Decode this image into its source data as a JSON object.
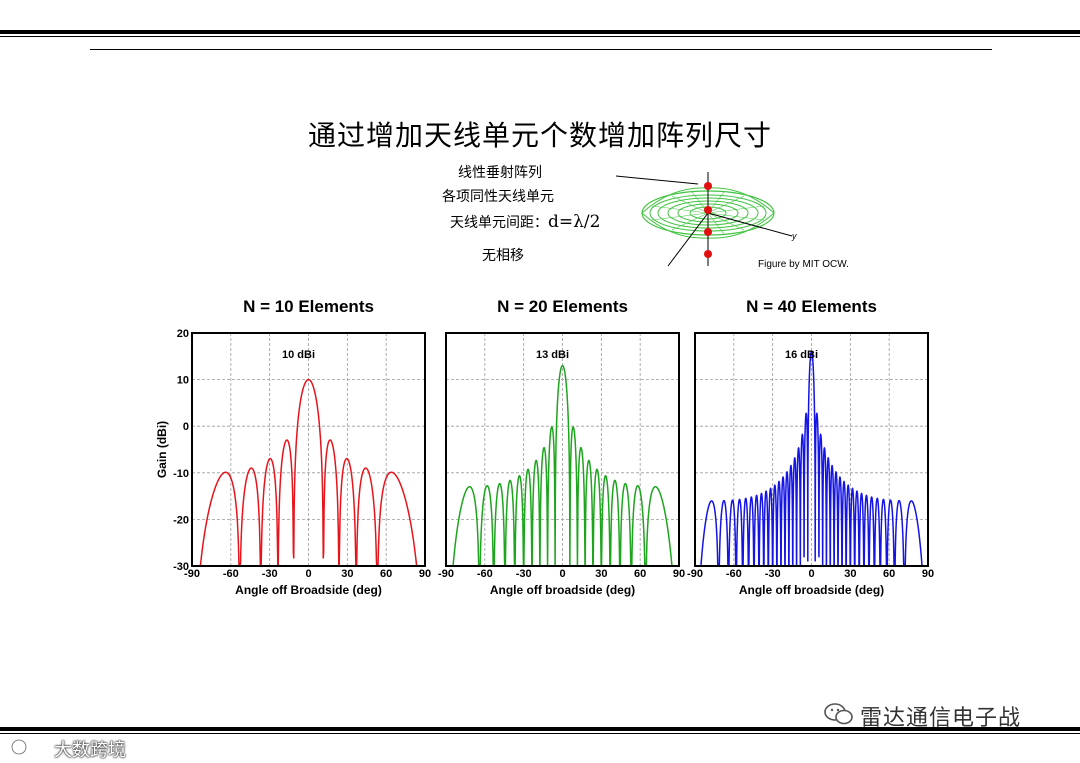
{
  "slide": {
    "title": "通过增加天线单元个数增加阵列尺寸",
    "description": {
      "line1": "线性垂射阵列",
      "line2": "各项同性天线单元",
      "line3_prefix": "天线单元间距：",
      "line3_formula": "d=λ/2",
      "line4": "无相移"
    },
    "figure_credit": "Figure by MIT OCW.",
    "figure_axis_label": "y"
  },
  "watermarks": {
    "account": "雷达通信电子战",
    "logo_text": "大数跨境"
  },
  "colors": {
    "n10": "#e8141c",
    "n20": "#1ea51e",
    "n40": "#1414e6",
    "grid": "#9a9a9a",
    "pattern_green": "#43c443",
    "element_dot": "#e01010"
  },
  "chart_data": [
    {
      "type": "line",
      "title": "N = 10 Elements",
      "annotation": "10 dBi",
      "elements": 10,
      "peak_gain_dbi": 10,
      "xlabel": "Angle off Broadside (deg)",
      "ylabel": "Gain (dBi)",
      "xlim": [
        -90,
        90
      ],
      "ylim": [
        -30,
        20
      ],
      "xticks": [
        "-90",
        "-60",
        "-30",
        "0",
        "30",
        "60",
        "90"
      ],
      "yticks": [
        "20",
        "10",
        "0",
        "-10",
        "-20",
        "-30"
      ],
      "grid": true,
      "color": "#e8141c"
    },
    {
      "type": "line",
      "title": "N = 20 Elements",
      "annotation": "13 dBi",
      "elements": 20,
      "peak_gain_dbi": 13,
      "xlabel": "Angle off broadside (deg)",
      "ylabel": "",
      "xlim": [
        -90,
        90
      ],
      "ylim": [
        -30,
        20
      ],
      "xticks": [
        "-90",
        "-60",
        "-30",
        "0",
        "30",
        "60",
        "90"
      ],
      "yticks": [],
      "grid": true,
      "color": "#1ea51e"
    },
    {
      "type": "line",
      "title": "N = 40 Elements",
      "annotation": "16 dBi",
      "elements": 40,
      "peak_gain_dbi": 16,
      "xlabel": "Angle off broadside (deg)",
      "ylabel": "",
      "xlim": [
        -90,
        90
      ],
      "ylim": [
        -30,
        20
      ],
      "xticks": [
        "-90",
        "-60",
        "-30",
        "0",
        "30",
        "60",
        "90"
      ],
      "yticks": [],
      "grid": true,
      "color": "#1414e6"
    }
  ]
}
